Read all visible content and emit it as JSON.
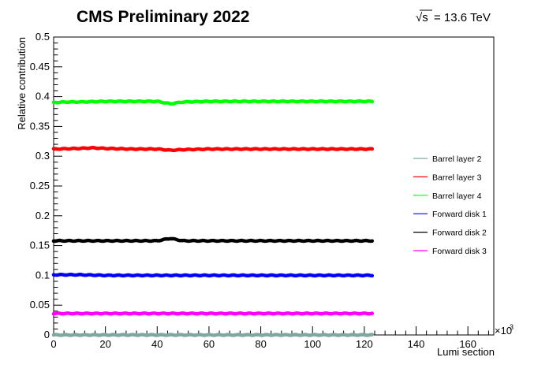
{
  "chart_data": {
    "type": "scatter",
    "title": "CMS Preliminary 2022",
    "energy_label": "= 13.6 TeV",
    "sqrt_symbol": "√s",
    "xlabel": "Lumi section",
    "x_multiplier": "×10",
    "x_multiplier_exp": "3",
    "ylabel": "Relative contribution",
    "xlim": [
      0,
      170
    ],
    "ylim": [
      0,
      0.5
    ],
    "x_ticks": [
      0,
      20,
      40,
      60,
      80,
      100,
      120,
      140,
      160
    ],
    "x_tick_labels": [
      "0",
      "20",
      "40",
      "60",
      "80",
      "100",
      "120",
      "140",
      "160"
    ],
    "y_ticks": [
      0,
      0.05,
      0.1,
      0.15,
      0.2,
      0.25,
      0.3,
      0.35,
      0.4,
      0.45,
      0.5
    ],
    "y_tick_labels": [
      "0",
      "0.05",
      "0.1",
      "0.15",
      "0.2",
      "0.25",
      "0.3",
      "0.35",
      "0.4",
      "0.45",
      "0.5"
    ],
    "grid": false,
    "legend_position": "right",
    "x_range": [
      0,
      123
    ],
    "series": [
      {
        "name": "Barrel layer 2",
        "color": "#7fa7a0",
        "level": 0.0,
        "x": [
          0,
          20,
          40,
          45,
          60,
          80,
          100,
          123
        ],
        "y": [
          0.0,
          0.0,
          0.0,
          0.0,
          0.0,
          0.0,
          0.0,
          0.0
        ]
      },
      {
        "name": "Barrel layer 3",
        "color": "#ff0000",
        "level": 0.312,
        "x": [
          0,
          10,
          15,
          20,
          30,
          40,
          45,
          50,
          60,
          80,
          100,
          123
        ],
        "y": [
          0.312,
          0.313,
          0.314,
          0.313,
          0.312,
          0.312,
          0.31,
          0.311,
          0.312,
          0.312,
          0.312,
          0.312
        ]
      },
      {
        "name": "Barrel layer 4",
        "color": "#00ff00",
        "level": 0.392,
        "x": [
          0,
          5,
          10,
          20,
          30,
          40,
          45,
          50,
          60,
          80,
          100,
          123
        ],
        "y": [
          0.39,
          0.391,
          0.391,
          0.392,
          0.392,
          0.392,
          0.388,
          0.391,
          0.392,
          0.392,
          0.392,
          0.392
        ]
      },
      {
        "name": "Forward disk 1",
        "color": "#0000ff",
        "level": 0.1,
        "x": [
          0,
          10,
          20,
          40,
          60,
          80,
          100,
          123
        ],
        "y": [
          0.101,
          0.101,
          0.1,
          0.1,
          0.1,
          0.1,
          0.1,
          0.1
        ]
      },
      {
        "name": "Forward disk 2",
        "color": "#000000",
        "level": 0.158,
        "x": [
          0,
          10,
          20,
          40,
          45,
          50,
          60,
          80,
          100,
          123
        ],
        "y": [
          0.158,
          0.158,
          0.158,
          0.158,
          0.162,
          0.158,
          0.158,
          0.158,
          0.158,
          0.158
        ]
      },
      {
        "name": "Forward disk 3",
        "color": "#ff00ff",
        "level": 0.036,
        "x": [
          0,
          20,
          40,
          60,
          80,
          100,
          123
        ],
        "y": [
          0.036,
          0.036,
          0.036,
          0.036,
          0.036,
          0.036,
          0.036
        ]
      }
    ]
  }
}
